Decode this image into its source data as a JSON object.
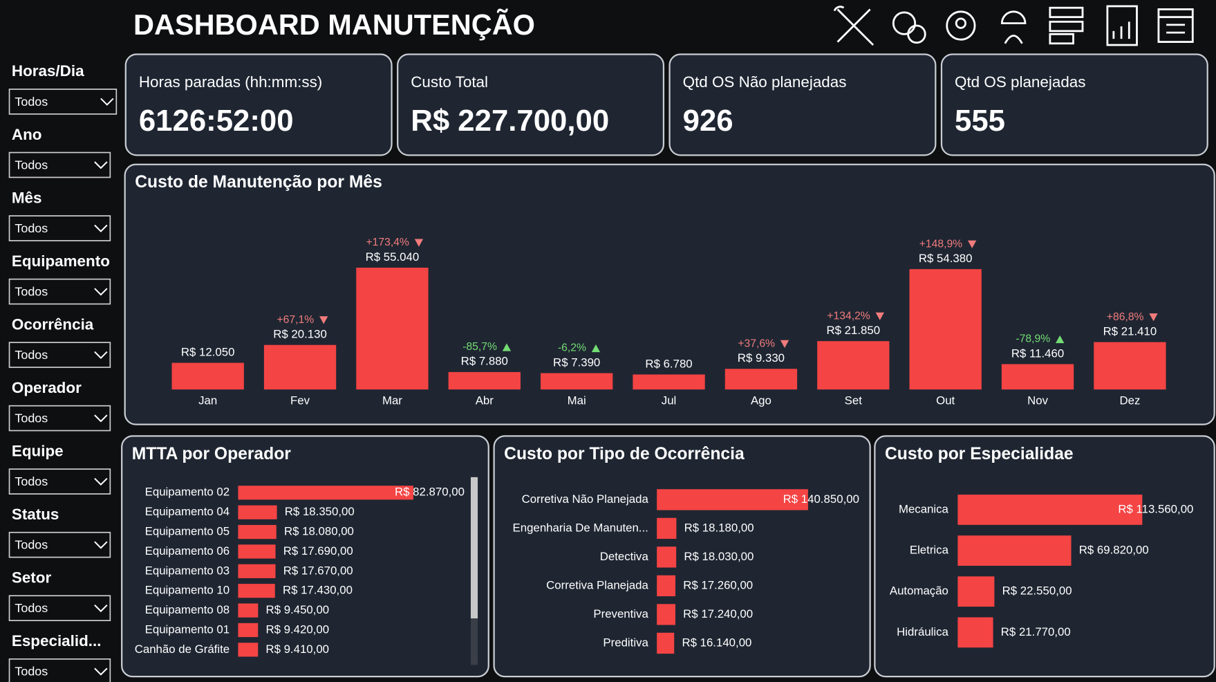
{
  "title": "DASHBOARD MANUTENÇÃO",
  "filters": [
    {
      "label": "Horas/Dia",
      "value": "Todos"
    },
    {
      "label": "Ano",
      "value": "Todos"
    },
    {
      "label": "Mês",
      "value": "Todos"
    },
    {
      "label": "Equipamento",
      "value": "Todos"
    },
    {
      "label": "Ocorrência",
      "value": "Todos"
    },
    {
      "label": "Operador",
      "value": "Todos"
    },
    {
      "label": "Equipe",
      "value": "Todos"
    },
    {
      "label": "Status",
      "value": "Todos"
    },
    {
      "label": "Setor",
      "value": "Todos"
    },
    {
      "label": "Especialid...",
      "value": "Todos"
    }
  ],
  "kpis": [
    {
      "label": "Horas paradas (hh:mm:ss)",
      "value": "6126:52:00"
    },
    {
      "label": "Custo Total",
      "value": "R$ 227.700,00"
    },
    {
      "label": "Qtd OS Não planejadas",
      "value": 926
    },
    {
      "label": "Qtd OS planejadas",
      "value": 555
    }
  ],
  "chart_data": [
    {
      "type": "bar",
      "title": "Custo de Manutenção por Mês",
      "color": "#f44444",
      "increase_color": "#f27c7c",
      "decrease_color": "#74dd74",
      "categories": [
        "Jan",
        "Fev",
        "Mar",
        "Abr",
        "Mai",
        "Jul",
        "Ago",
        "Set",
        "Out",
        "Nov",
        "Dez"
      ],
      "values": [
        12050,
        20130,
        55040,
        7880,
        7390,
        6780,
        9330,
        21850,
        54380,
        11460,
        21410
      ],
      "value_labels": [
        "R$ 12.050",
        "R$ 20.130",
        "R$ 55.040",
        "R$ 7.880",
        "R$ 7.390",
        "R$ 6.780",
        "R$ 9.330",
        "R$ 21.850",
        "R$ 54.380",
        "R$ 11.460",
        "R$ 21.410"
      ],
      "changes": [
        null,
        67.1,
        173.4,
        -85.7,
        -6.2,
        null,
        37.6,
        134.2,
        148.9,
        -78.9,
        86.8
      ],
      "change_labels": [
        null,
        "+67,1%",
        "+173,4%",
        "-85,7%",
        "-6,2%",
        null,
        "+37,6%",
        "+134,2%",
        "+148,9%",
        "-78,9%",
        "+86,8%"
      ]
    },
    {
      "type": "hbar",
      "title": "MTTA por Operador",
      "color": "#f44444",
      "categories": [
        "Equipamento 02",
        "Equipamento 04",
        "Equipamento 05",
        "Equipamento 06",
        "Equipamento 03",
        "Equipamento 10",
        "Equipamento 08",
        "Equipamento 01",
        "Canhão de Gráfite"
      ],
      "values": [
        82870,
        18350,
        18080,
        17690,
        17670,
        17430,
        9450,
        9420,
        9410
      ],
      "value_labels": [
        "R$ 82.870,00",
        "R$ 18.350,00",
        "R$ 18.080,00",
        "R$ 17.690,00",
        "R$ 17.670,00",
        "R$ 17.430,00",
        "R$ 9.450,00",
        "R$ 9.420,00",
        "R$ 9.410,00"
      ]
    },
    {
      "type": "hbar",
      "title": "Custo por Tipo de Ocorrência",
      "color": "#f44444",
      "categories": [
        "Corretiva Não Planejada",
        "Engenharia De Manuten...",
        "Detectiva",
        "Corretiva Planejada",
        "Preventiva",
        "Preditiva"
      ],
      "values": [
        140850,
        18180,
        18030,
        17260,
        17240,
        16140
      ],
      "value_labels": [
        "R$ 140.850,00",
        "R$ 18.180,00",
        "R$ 18.030,00",
        "R$ 17.260,00",
        "R$ 17.240,00",
        "R$ 16.140,00"
      ]
    },
    {
      "type": "hbar",
      "title": "Custo por Especialidae",
      "color": "#f44444",
      "categories": [
        "Mecanica",
        "Eletrica",
        "Automação",
        "Hidráulica"
      ],
      "values": [
        113560,
        69820,
        22550,
        21770
      ],
      "value_labels": [
        "R$ 113.560,00",
        "R$ 69.820,00",
        "R$ 22.550,00",
        "R$ 21.770,00"
      ]
    }
  ]
}
